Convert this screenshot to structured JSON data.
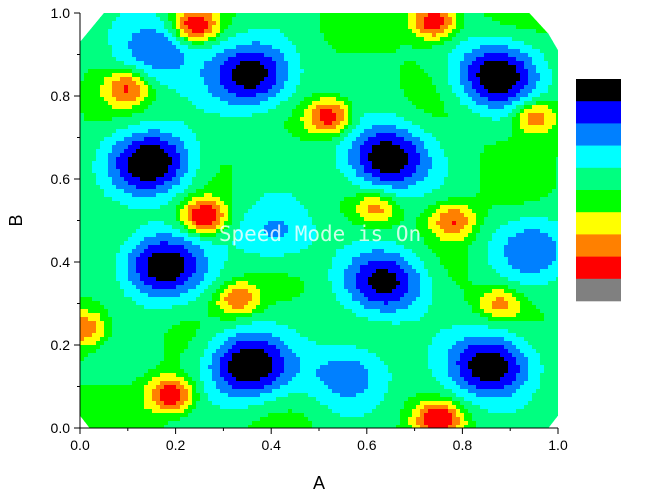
{
  "chart_data": {
    "type": "heatmap",
    "subtype": "filled-contour",
    "title": "",
    "xlabel": "A",
    "ylabel": "B",
    "xlim": [
      0.0,
      1.0
    ],
    "ylim": [
      0.0,
      1.0
    ],
    "x_ticks": [
      "0.0",
      "0.2",
      "0.4",
      "0.6",
      "0.8",
      "1.0"
    ],
    "y_ticks": [
      "0.0",
      "0.2",
      "0.4",
      "0.6",
      "0.8",
      "1.0"
    ],
    "grid": false,
    "legend_position": "right",
    "legend_labels_shown": false,
    "color_scale": [
      "#000000",
      "#0000ff",
      "#0080ff",
      "#00ffff",
      "#00ff80",
      "#00ff00",
      "#ffff00",
      "#ff8000",
      "#ff0000",
      "#808080"
    ],
    "watermark": "Speed Mode is On",
    "features": [
      {
        "kind": "low",
        "x": 0.16,
        "y": 0.91,
        "depth": 0.55
      },
      {
        "kind": "low",
        "x": 0.36,
        "y": 0.85,
        "depth": 0.95
      },
      {
        "kind": "low",
        "x": 0.87,
        "y": 0.85,
        "depth": 0.95
      },
      {
        "kind": "low",
        "x": 0.15,
        "y": 0.64,
        "depth": 1.0
      },
      {
        "kind": "low",
        "x": 0.64,
        "y": 0.65,
        "depth": 1.0
      },
      {
        "kind": "low",
        "x": 0.17,
        "y": 0.39,
        "depth": 0.95
      },
      {
        "kind": "low",
        "x": 0.64,
        "y": 0.35,
        "depth": 0.85
      },
      {
        "kind": "low",
        "x": 0.95,
        "y": 0.43,
        "depth": 0.5
      },
      {
        "kind": "low",
        "x": 0.35,
        "y": 0.15,
        "depth": 1.0
      },
      {
        "kind": "low",
        "x": 0.86,
        "y": 0.15,
        "depth": 1.0
      },
      {
        "kind": "low",
        "x": 0.56,
        "y": 0.13,
        "depth": 0.55
      },
      {
        "kind": "low",
        "x": 0.41,
        "y": 0.47,
        "depth": 0.45
      },
      {
        "kind": "high",
        "x": 0.24,
        "y": 0.97,
        "height": 0.85
      },
      {
        "kind": "high",
        "x": 0.74,
        "y": 0.98,
        "height": 0.9
      },
      {
        "kind": "high",
        "x": 0.26,
        "y": 0.51,
        "height": 0.9
      },
      {
        "kind": "high",
        "x": 0.33,
        "y": 0.31,
        "height": 0.55
      },
      {
        "kind": "high",
        "x": 0.52,
        "y": 0.75,
        "height": 0.8
      },
      {
        "kind": "high",
        "x": 0.19,
        "y": 0.08,
        "height": 0.85
      },
      {
        "kind": "high",
        "x": 0.75,
        "y": 0.02,
        "height": 0.85
      },
      {
        "kind": "high",
        "x": 0.1,
        "y": 0.82,
        "height": 0.6
      },
      {
        "kind": "high",
        "x": 0.78,
        "y": 0.5,
        "height": 0.6
      },
      {
        "kind": "high",
        "x": 0.62,
        "y": 0.53,
        "height": 0.45
      },
      {
        "kind": "high",
        "x": 0.95,
        "y": 0.75,
        "height": 0.55
      },
      {
        "kind": "high",
        "x": 0.88,
        "y": 0.3,
        "height": 0.45
      },
      {
        "kind": "high",
        "x": 0.01,
        "y": 0.24,
        "height": 0.55
      }
    ]
  }
}
